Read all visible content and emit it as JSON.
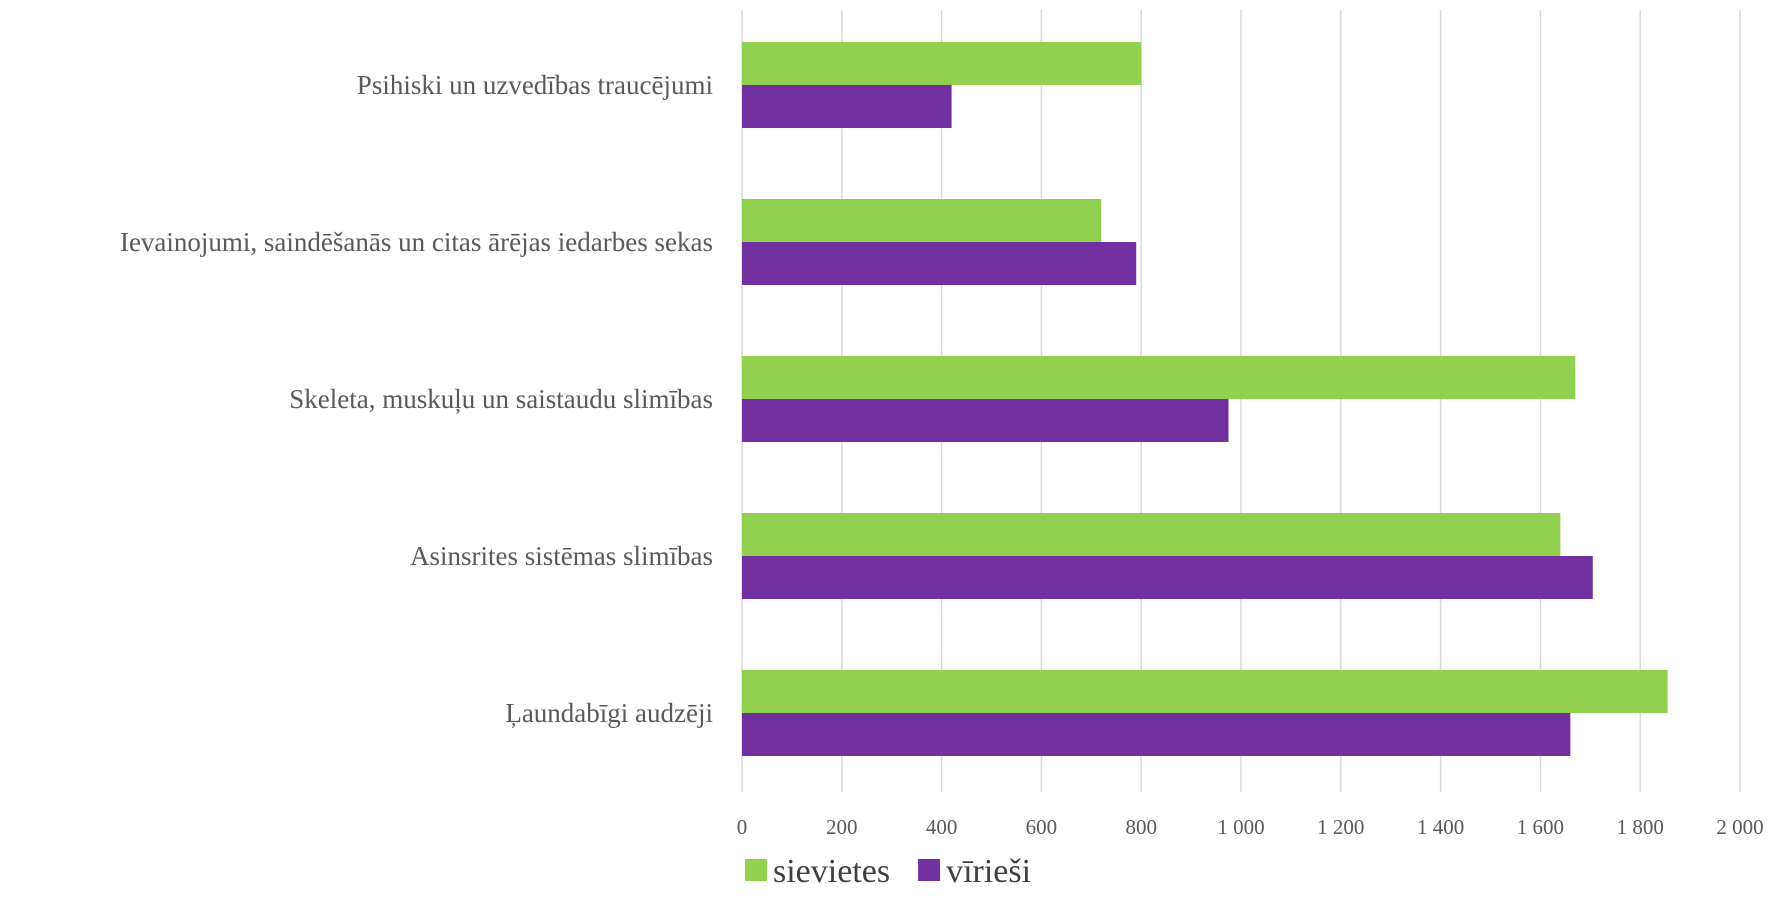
{
  "chart_data": {
    "type": "bar",
    "orientation": "horizontal",
    "categories": [
      "Psihiski un uzvedības traucējumi",
      "Ievainojumi, saindēšanās un citas ārējas iedarbes sekas",
      "Skeleta, muskuļu un saistaudu slimības",
      "Asinsrites sistēmas slimības",
      "Ļaundabīgi audzēji"
    ],
    "series": [
      {
        "name": "sievietes",
        "color": "#92d050",
        "values": [
          800,
          720,
          1670,
          1640,
          1855
        ]
      },
      {
        "name": "vīrieši",
        "color": "#7030a0",
        "values": [
          420,
          790,
          975,
          1705,
          1660
        ]
      }
    ],
    "xlim": [
      0,
      2000
    ],
    "xticks": [
      0,
      200,
      400,
      600,
      800,
      1000,
      1200,
      1400,
      1600,
      1800,
      2000
    ],
    "xtick_labels": [
      "0",
      "200",
      "400",
      "600",
      "800",
      "1 000",
      "1 200",
      "1 400",
      "1 600",
      "1 800",
      "2 000"
    ],
    "grid": "vertical",
    "legend": "bottom"
  }
}
